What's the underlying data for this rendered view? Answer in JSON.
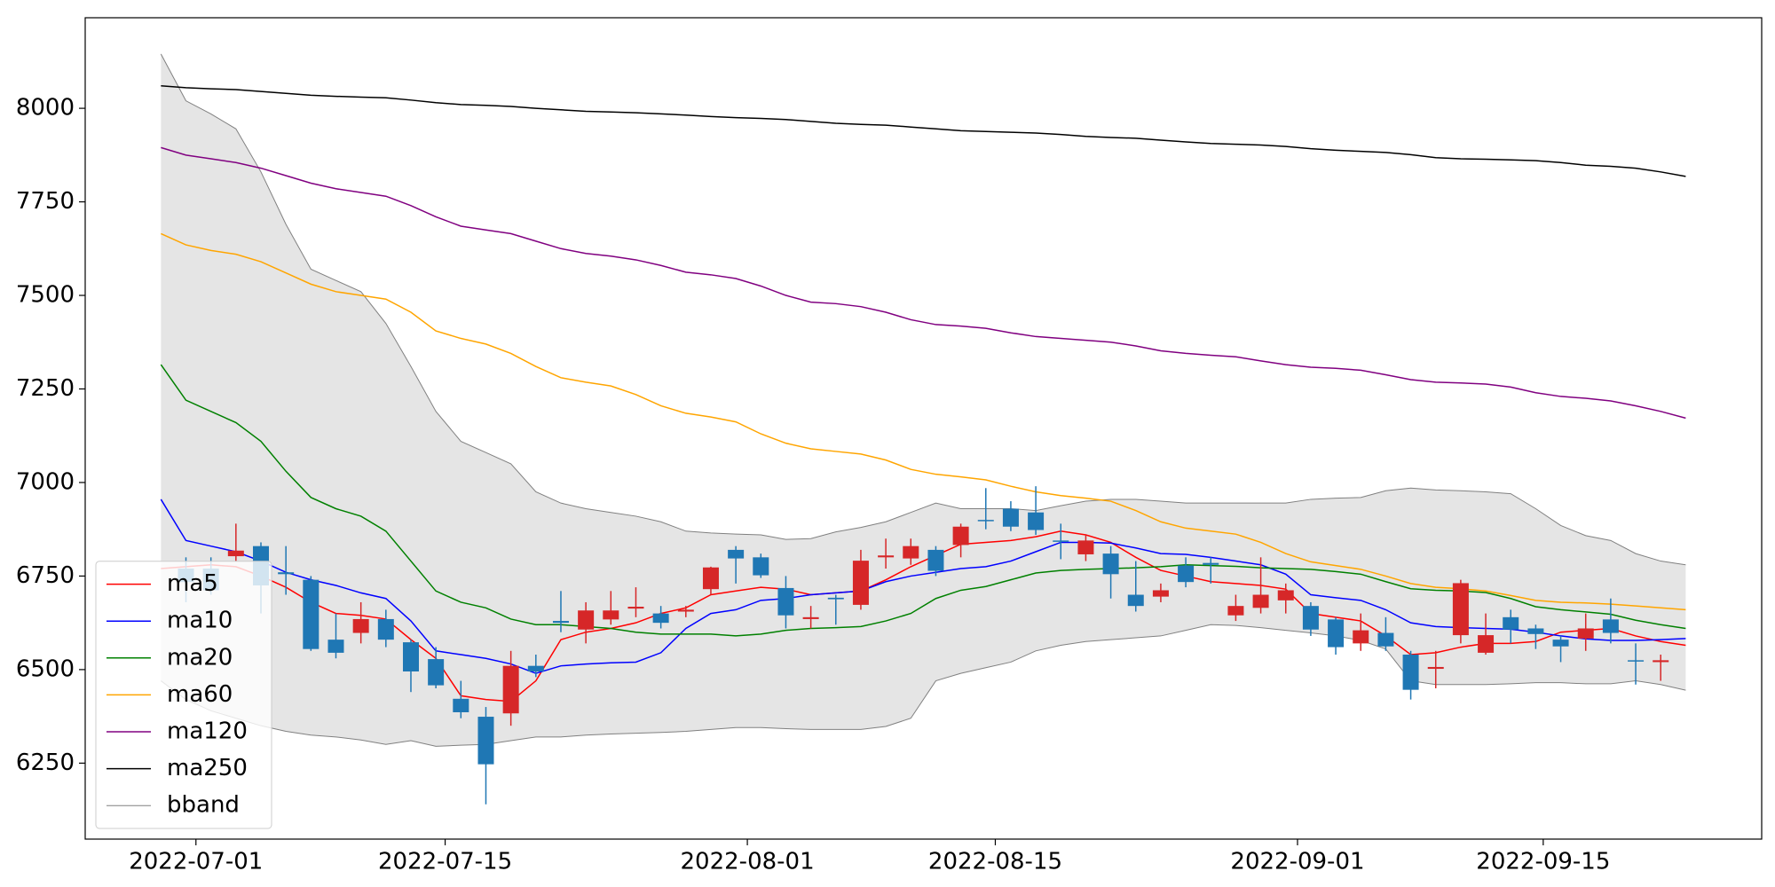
{
  "chart_data": {
    "type": "candlestick",
    "x": [
      0,
      1,
      2,
      3,
      4,
      5,
      6,
      7,
      8,
      9,
      10,
      11,
      12,
      13,
      14,
      15,
      16,
      17,
      18,
      19,
      20,
      21,
      22,
      23,
      24,
      25,
      26,
      27,
      28,
      29,
      30,
      31,
      32,
      33,
      34,
      35,
      36,
      37,
      38,
      39,
      40,
      41,
      42,
      43,
      44,
      45,
      46,
      47,
      48,
      49,
      50,
      51,
      52,
      53,
      54,
      55,
      56,
      57,
      58,
      59,
      60,
      61
    ],
    "xlim": [
      -3.03,
      64.04
    ],
    "xticks": [
      {
        "value": 1.4,
        "label": "2022-07-01"
      },
      {
        "value": 11.37,
        "label": "2022-07-15"
      },
      {
        "value": 23.46,
        "label": "2022-08-01"
      },
      {
        "value": 33.38,
        "label": "2022-08-15"
      },
      {
        "value": 45.47,
        "label": "2022-09-01"
      },
      {
        "value": 55.3,
        "label": "2022-09-15"
      }
    ],
    "ylim": [
      6047,
      8242
    ],
    "yticks": [
      6250,
      6500,
      6750,
      7000,
      7250,
      7500,
      7750,
      8000
    ],
    "legend": "lower left",
    "candles": {
      "up_color": "#d62728",
      "down_color": "#1f77b4",
      "open": [
        null,
        6770,
        6770,
        6803,
        6830,
        6760,
        6740,
        6580,
        6598,
        6635,
        6573,
        6528,
        6422,
        6374,
        6383,
        6510,
        6630,
        6607,
        6634,
        6663,
        6650,
        6655,
        6715,
        6820,
        6800,
        6718,
        6635,
        6692,
        6673,
        6800,
        6797,
        6820,
        6833,
        6900,
        6930,
        6920,
        6845,
        6808,
        6810,
        6700,
        6695,
        6778,
        6785,
        6645,
        6665,
        6685,
        6670,
        6634,
        6570,
        6598,
        6540,
        6502,
        6592,
        6545,
        6640,
        6610,
        6580,
        6583,
        6634,
        6525,
        6520,
        null
      ],
      "high": [
        null,
        6800,
        6800,
        6890,
        6840,
        6830,
        6750,
        6650,
        6680,
        6660,
        6580,
        6560,
        6470,
        6400,
        6550,
        6540,
        6710,
        6680,
        6710,
        6720,
        6670,
        6670,
        6775,
        6830,
        6810,
        6750,
        6670,
        6700,
        6820,
        6850,
        6850,
        6830,
        6890,
        6985,
        6950,
        6990,
        6890,
        6860,
        6830,
        6790,
        6730,
        6800,
        6800,
        6700,
        6800,
        6730,
        6680,
        6640,
        6650,
        6640,
        6550,
        6550,
        6740,
        6650,
        6660,
        6620,
        6590,
        6650,
        6690,
        6570,
        6540,
        null
      ],
      "low": [
        null,
        6680,
        6700,
        6790,
        6650,
        6700,
        6550,
        6530,
        6570,
        6560,
        6440,
        6450,
        6370,
        6140,
        6350,
        6480,
        6600,
        6570,
        6620,
        6640,
        6610,
        6640,
        6700,
        6730,
        6745,
        6610,
        6610,
        6620,
        6660,
        6770,
        6780,
        6750,
        6800,
        6875,
        6870,
        6860,
        6795,
        6790,
        6690,
        6655,
        6680,
        6720,
        6730,
        6630,
        6650,
        6650,
        6590,
        6540,
        6550,
        6550,
        6420,
        6450,
        6570,
        6540,
        6570,
        6555,
        6520,
        6550,
        6570,
        6460,
        6470,
        null
      ],
      "close": [
        null,
        6734,
        6712,
        6818,
        6725,
        6755,
        6555,
        6545,
        6635,
        6580,
        6495,
        6458,
        6386,
        6247,
        6510,
        6495,
        6625,
        6658,
        6658,
        6668,
        6625,
        6660,
        6773,
        6797,
        6752,
        6645,
        6640,
        6688,
        6791,
        6805,
        6830,
        6764,
        6882,
        6898,
        6882,
        6873,
        6842,
        6845,
        6755,
        6670,
        6712,
        6734,
        6780,
        6670,
        6700,
        6712,
        6607,
        6560,
        6605,
        6562,
        6446,
        6507,
        6731,
        6592,
        6607,
        6595,
        6562,
        6610,
        6598,
        6522,
        6525,
        null
      ]
    },
    "series": [
      {
        "name": "ma5",
        "color": "#ff0000",
        "values": [
          6770,
          6775,
          6780,
          6775,
          6750,
          6720,
          6680,
          6650,
          6645,
          6635,
          6580,
          6530,
          6430,
          6420,
          6415,
          6470,
          6580,
          6600,
          6610,
          6625,
          6650,
          6665,
          6700,
          6710,
          6720,
          6715,
          6700,
          6705,
          6710,
          6740,
          6775,
          6805,
          6835,
          6840,
          6845,
          6855,
          6870,
          6860,
          6840,
          6800,
          6765,
          6750,
          6735,
          6730,
          6725,
          6715,
          6650,
          6640,
          6630,
          6590,
          6540,
          6545,
          6560,
          6570,
          6570,
          6575,
          6600,
          6605,
          6610,
          6590,
          6575,
          6565
        ]
      },
      {
        "name": "ma10",
        "color": "#0000ff",
        "values": [
          6955,
          6845,
          6830,
          6815,
          6790,
          6760,
          6740,
          6725,
          6705,
          6690,
          6630,
          6550,
          6540,
          6530,
          6515,
          6490,
          6510,
          6515,
          6518,
          6520,
          6545,
          6610,
          6650,
          6660,
          6685,
          6690,
          6700,
          6705,
          6710,
          6735,
          6750,
          6760,
          6770,
          6775,
          6790,
          6815,
          6840,
          6840,
          6838,
          6825,
          6810,
          6808,
          6800,
          6790,
          6780,
          6755,
          6700,
          6692,
          6685,
          6660,
          6625,
          6615,
          6612,
          6610,
          6608,
          6600,
          6590,
          6582,
          6578,
          6578,
          6580,
          6583
        ]
      },
      {
        "name": "ma20",
        "color": "#008000",
        "values": [
          7315,
          7220,
          7190,
          7160,
          7110,
          7030,
          6960,
          6930,
          6910,
          6870,
          6790,
          6710,
          6680,
          6665,
          6635,
          6620,
          6620,
          6615,
          6610,
          6600,
          6595,
          6595,
          6595,
          6590,
          6595,
          6605,
          6610,
          6612,
          6615,
          6630,
          6650,
          6690,
          6712,
          6722,
          6740,
          6758,
          6765,
          6768,
          6770,
          6772,
          6775,
          6780,
          6778,
          6776,
          6772,
          6770,
          6768,
          6762,
          6755,
          6735,
          6716,
          6712,
          6710,
          6706,
          6690,
          6668,
          6660,
          6654,
          6648,
          6632,
          6620,
          6610
        ]
      },
      {
        "name": "ma60",
        "color": "#ffa500",
        "values": [
          7665,
          7635,
          7620,
          7610,
          7590,
          7560,
          7530,
          7510,
          7500,
          7490,
          7455,
          7405,
          7385,
          7370,
          7345,
          7310,
          7280,
          7268,
          7258,
          7235,
          7205,
          7185,
          7175,
          7162,
          7130,
          7105,
          7090,
          7083,
          7076,
          7060,
          7035,
          7022,
          7015,
          7007,
          6990,
          6975,
          6965,
          6958,
          6950,
          6925,
          6895,
          6878,
          6870,
          6862,
          6840,
          6810,
          6788,
          6778,
          6768,
          6750,
          6730,
          6720,
          6716,
          6710,
          6698,
          6685,
          6680,
          6678,
          6675,
          6670,
          6665,
          6660
        ]
      },
      {
        "name": "ma120",
        "color": "#800080",
        "values": [
          7895,
          7875,
          7865,
          7855,
          7840,
          7820,
          7800,
          7785,
          7775,
          7765,
          7740,
          7710,
          7685,
          7675,
          7665,
          7645,
          7625,
          7612,
          7605,
          7595,
          7580,
          7562,
          7555,
          7545,
          7525,
          7500,
          7482,
          7478,
          7470,
          7455,
          7435,
          7422,
          7418,
          7412,
          7400,
          7390,
          7385,
          7380,
          7375,
          7365,
          7352,
          7345,
          7340,
          7336,
          7325,
          7315,
          7308,
          7305,
          7300,
          7288,
          7275,
          7268,
          7266,
          7263,
          7255,
          7240,
          7230,
          7225,
          7218,
          7205,
          7190,
          7172
        ]
      },
      {
        "name": "ma250",
        "color": "#000000",
        "values": [
          8060,
          8055,
          8052,
          8050,
          8045,
          8040,
          8035,
          8032,
          8030,
          8028,
          8022,
          8015,
          8010,
          8008,
          8005,
          8000,
          7996,
          7992,
          7990,
          7988,
          7985,
          7982,
          7978,
          7975,
          7973,
          7970,
          7965,
          7960,
          7957,
          7955,
          7950,
          7945,
          7940,
          7938,
          7936,
          7934,
          7930,
          7925,
          7922,
          7920,
          7915,
          7910,
          7906,
          7904,
          7902,
          7898,
          7892,
          7888,
          7885,
          7882,
          7876,
          7868,
          7865,
          7864,
          7862,
          7860,
          7855,
          7848,
          7845,
          7840,
          7830,
          7818
        ]
      },
      {
        "name": "bband",
        "color": "#808080",
        "fill": "#e5e5e5",
        "upper": [
          8145,
          8020,
          7985,
          7945,
          7830,
          7690,
          7570,
          7540,
          7510,
          7425,
          7310,
          7190,
          7110,
          7080,
          7050,
          6975,
          6945,
          6930,
          6920,
          6910,
          6895,
          6870,
          6865,
          6862,
          6860,
          6848,
          6850,
          6868,
          6880,
          6895,
          6920,
          6945,
          6930,
          6930,
          6930,
          6925,
          6938,
          6950,
          6955,
          6955,
          6950,
          6945,
          6945,
          6945,
          6945,
          6945,
          6955,
          6958,
          6960,
          6978,
          6985,
          6980,
          6978,
          6975,
          6970,
          6930,
          6885,
          6858,
          6845,
          6810,
          6790,
          6780
        ],
        "lower": [
          6470,
          6420,
          6390,
          6370,
          6350,
          6335,
          6325,
          6320,
          6312,
          6300,
          6310,
          6295,
          6298,
          6300,
          6310,
          6320,
          6320,
          6325,
          6328,
          6330,
          6332,
          6335,
          6340,
          6345,
          6345,
          6342,
          6340,
          6340,
          6340,
          6348,
          6370,
          6470,
          6490,
          6505,
          6520,
          6550,
          6565,
          6575,
          6580,
          6585,
          6590,
          6605,
          6620,
          6618,
          6612,
          6605,
          6598,
          6590,
          6578,
          6555,
          6470,
          6460,
          6460,
          6460,
          6462,
          6465,
          6465,
          6462,
          6462,
          6470,
          6460,
          6445
        ]
      }
    ]
  }
}
